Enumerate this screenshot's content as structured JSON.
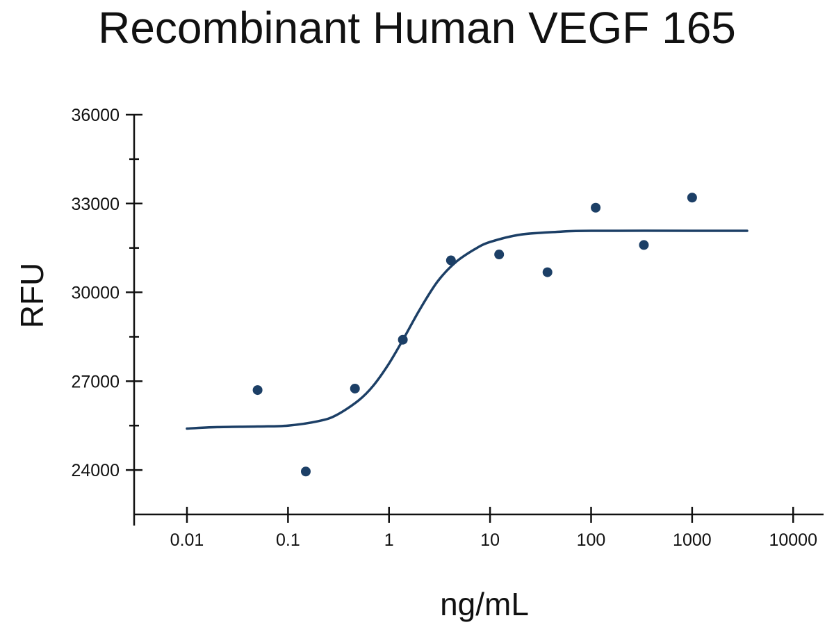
{
  "colors": {
    "series": "#1c3f66",
    "axis": "#111111"
  },
  "chart_data": {
    "type": "scatter",
    "title": "Recombinant Human VEGF 165",
    "xlabel": "ng/mL",
    "ylabel": "RFU",
    "x_scale": "log",
    "xlim": [
      0.003,
      20000
    ],
    "ylim": [
      22500,
      36000
    ],
    "x_ticks": [
      0.01,
      0.1,
      1,
      10,
      100,
      1000,
      10000
    ],
    "x_tick_labels": [
      "0.01",
      "0.1",
      "1",
      "10",
      "100",
      "1000",
      "10000"
    ],
    "y_ticks": [
      24000,
      27000,
      30000,
      33000,
      36000
    ],
    "y_tick_labels": [
      "24000",
      "27000",
      "30000",
      "33000",
      "36000"
    ],
    "y_minor_ticks": [
      25500,
      28500,
      31500,
      34500
    ],
    "legend": "none",
    "grid": false,
    "series": [
      {
        "points": [
          {
            "x": 0.05,
            "y": 26700
          },
          {
            "x": 0.15,
            "y": 23950
          },
          {
            "x": 0.46,
            "y": 26750
          },
          {
            "x": 1.37,
            "y": 28400
          },
          {
            "x": 4.1,
            "y": 31080
          },
          {
            "x": 12.3,
            "y": 31280
          },
          {
            "x": 37,
            "y": 30680
          },
          {
            "x": 111,
            "y": 32860
          },
          {
            "x": 333,
            "y": 31600
          },
          {
            "x": 1000,
            "y": 33200
          }
        ]
      }
    ],
    "fit_curve": {
      "points": [
        {
          "x": 0.01,
          "y": 25400
        },
        {
          "x": 0.02,
          "y": 25450
        },
        {
          "x": 0.05,
          "y": 25470
        },
        {
          "x": 0.1,
          "y": 25500
        },
        {
          "x": 0.2,
          "y": 25650
        },
        {
          "x": 0.3,
          "y": 25850
        },
        {
          "x": 0.5,
          "y": 26350
        },
        {
          "x": 0.7,
          "y": 26850
        },
        {
          "x": 1.0,
          "y": 27600
        },
        {
          "x": 1.4,
          "y": 28450
        },
        {
          "x": 2.0,
          "y": 29400
        },
        {
          "x": 3.0,
          "y": 30350
        },
        {
          "x": 4.5,
          "y": 31000
        },
        {
          "x": 7,
          "y": 31450
        },
        {
          "x": 10,
          "y": 31700
        },
        {
          "x": 20,
          "y": 31950
        },
        {
          "x": 50,
          "y": 32050
        },
        {
          "x": 100,
          "y": 32080
        },
        {
          "x": 1000,
          "y": 32080
        },
        {
          "x": 3500,
          "y": 32080
        }
      ]
    }
  }
}
